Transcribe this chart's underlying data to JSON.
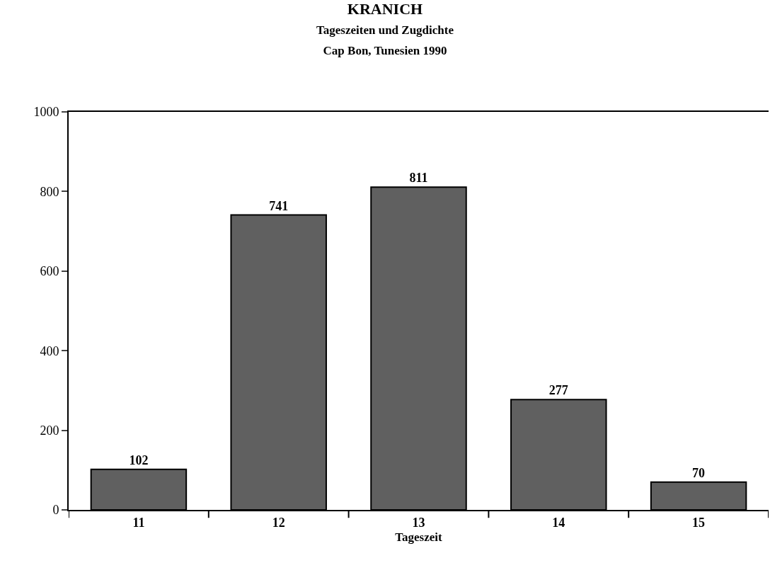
{
  "chart_data": {
    "type": "bar",
    "title": "KRANICH",
    "subtitle": "Tageszeiten und Zugdichte\nCap Bon, Tunesien 1990",
    "xlabel": "Tageszeit",
    "categories": [
      "11",
      "12",
      "13",
      "14",
      "15"
    ],
    "values": [
      102,
      741,
      811,
      277,
      70
    ],
    "color": "#606060",
    "ylim": [
      0,
      1000
    ],
    "yticks": [
      0,
      200,
      400,
      600,
      800,
      1000
    ],
    "legend": false,
    "data_labels": true
  }
}
